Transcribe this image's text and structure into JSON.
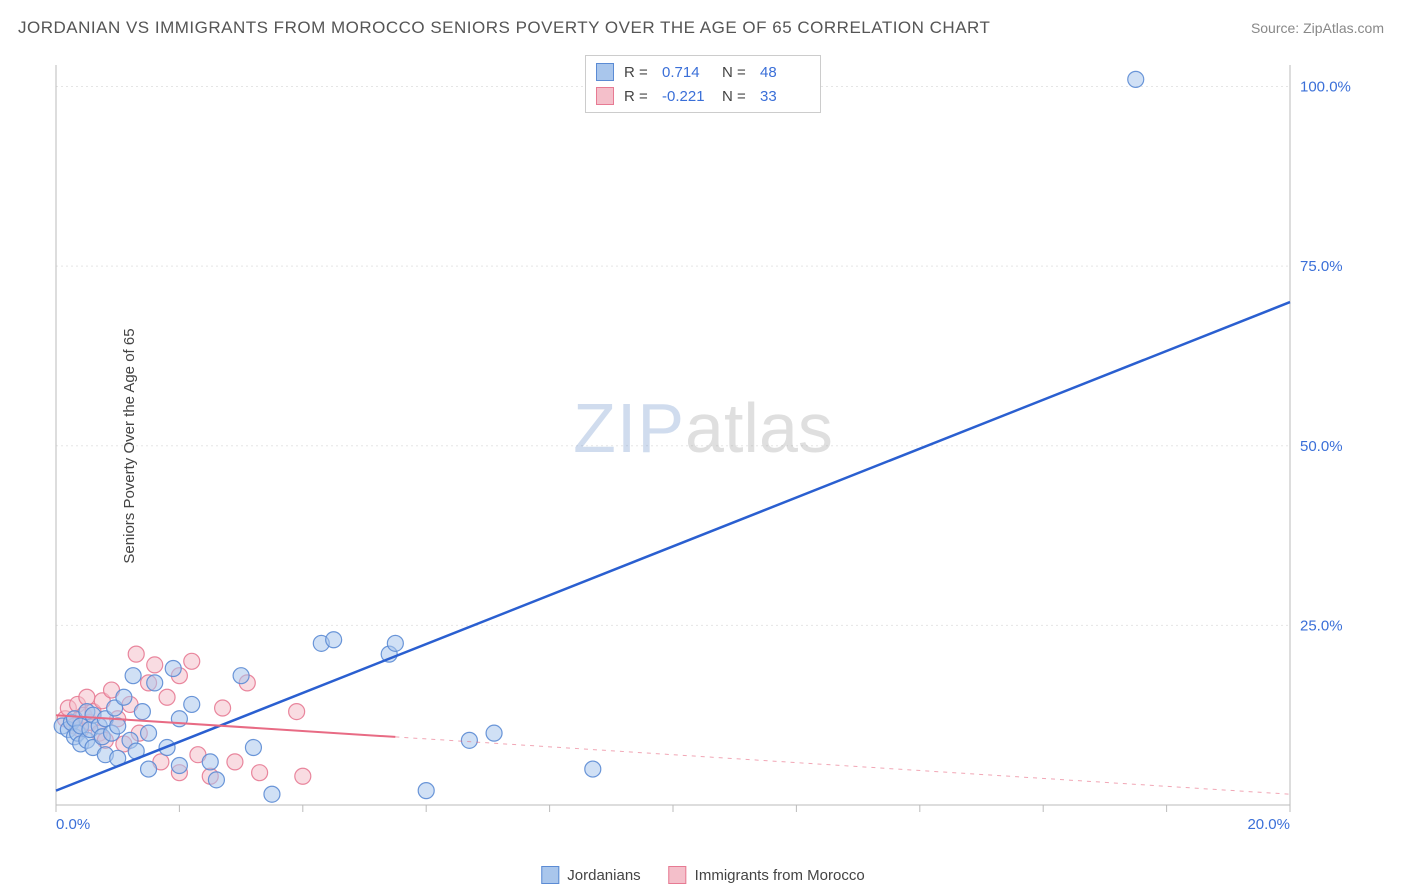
{
  "title": "JORDANIAN VS IMMIGRANTS FROM MOROCCO SENIORS POVERTY OVER THE AGE OF 65 CORRELATION CHART",
  "source_label": "Source:",
  "source_value": "ZipAtlas.com",
  "y_axis_label": "Seniors Poverty Over the Age of 65",
  "watermark": {
    "left": "ZIP",
    "right": "atlas"
  },
  "chart": {
    "type": "scatter-with-regression",
    "background_color": "#ffffff",
    "grid_color": "#e5e5e5",
    "grid_dash": "2,3",
    "axis_color": "#cccccc",
    "xlim": [
      0,
      20
    ],
    "ylim": [
      0,
      103
    ],
    "x_ticks": [
      0,
      2,
      4,
      6,
      8,
      10,
      12,
      14,
      16,
      18,
      20
    ],
    "x_tick_labels": [
      "0.0%",
      "",
      "",
      "",
      "",
      "",
      "",
      "",
      "",
      "",
      "20.0%"
    ],
    "x_tick_label_color": "#3a6fd8",
    "y_ticks": [
      25,
      50,
      75,
      100
    ],
    "y_tick_labels": [
      "25.0%",
      "50.0%",
      "75.0%",
      "100.0%"
    ],
    "y_tick_label_color": "#3a6fd8",
    "y_tick_label_fontsize": 15,
    "marker_radius": 8,
    "marker_opacity": 0.55,
    "marker_stroke_opacity": 0.9,
    "series": [
      {
        "name": "Jordanians",
        "color_fill": "#a9c6ec",
        "color_stroke": "#5b8bd4",
        "R": "0.714",
        "N": "48",
        "regression": {
          "x1": 0,
          "y1": 2,
          "x2": 20,
          "y2": 70,
          "solid_until_x": 20,
          "stroke": "#2a5fd0",
          "width": 2.5
        },
        "points": [
          [
            0.1,
            11
          ],
          [
            0.2,
            10.5
          ],
          [
            0.25,
            11.5
          ],
          [
            0.3,
            12
          ],
          [
            0.3,
            9.5
          ],
          [
            0.35,
            10
          ],
          [
            0.4,
            11
          ],
          [
            0.4,
            8.5
          ],
          [
            0.5,
            13
          ],
          [
            0.5,
            9
          ],
          [
            0.55,
            10.5
          ],
          [
            0.6,
            12.5
          ],
          [
            0.6,
            8
          ],
          [
            0.7,
            11
          ],
          [
            0.75,
            9.5
          ],
          [
            0.8,
            12
          ],
          [
            0.8,
            7
          ],
          [
            0.9,
            10
          ],
          [
            0.95,
            13.5
          ],
          [
            1.0,
            11
          ],
          [
            1.0,
            6.5
          ],
          [
            1.1,
            15
          ],
          [
            1.2,
            9
          ],
          [
            1.25,
            18
          ],
          [
            1.3,
            7.5
          ],
          [
            1.4,
            13
          ],
          [
            1.5,
            10
          ],
          [
            1.5,
            5
          ],
          [
            1.6,
            17
          ],
          [
            1.8,
            8
          ],
          [
            1.9,
            19
          ],
          [
            2.0,
            12
          ],
          [
            2.0,
            5.5
          ],
          [
            2.2,
            14
          ],
          [
            2.5,
            6
          ],
          [
            2.6,
            3.5
          ],
          [
            3.0,
            18
          ],
          [
            3.2,
            8
          ],
          [
            3.5,
            1.5
          ],
          [
            4.3,
            22.5
          ],
          [
            4.5,
            23
          ],
          [
            5.4,
            21
          ],
          [
            5.5,
            22.5
          ],
          [
            6.0,
            2
          ],
          [
            6.7,
            9
          ],
          [
            7.1,
            10
          ],
          [
            8.7,
            5
          ],
          [
            17.5,
            101
          ]
        ]
      },
      {
        "name": "Immigrants from Morocco",
        "color_fill": "#f4bfca",
        "color_stroke": "#e77a93",
        "R": "-0.221",
        "N": "33",
        "regression": {
          "x1": 0,
          "y1": 12.5,
          "x2": 20,
          "y2": 1.5,
          "solid_until_x": 5.5,
          "stroke": "#e86b84",
          "width": 2
        },
        "points": [
          [
            0.15,
            12
          ],
          [
            0.2,
            13.5
          ],
          [
            0.3,
            11
          ],
          [
            0.35,
            14
          ],
          [
            0.4,
            10.5
          ],
          [
            0.45,
            12.5
          ],
          [
            0.5,
            15
          ],
          [
            0.55,
            11.5
          ],
          [
            0.6,
            13
          ],
          [
            0.7,
            10
          ],
          [
            0.75,
            14.5
          ],
          [
            0.8,
            9
          ],
          [
            0.9,
            16
          ],
          [
            1.0,
            12
          ],
          [
            1.1,
            8.5
          ],
          [
            1.2,
            14
          ],
          [
            1.3,
            21
          ],
          [
            1.35,
            10
          ],
          [
            1.5,
            17
          ],
          [
            1.6,
            19.5
          ],
          [
            1.7,
            6
          ],
          [
            1.8,
            15
          ],
          [
            2.0,
            18
          ],
          [
            2.0,
            4.5
          ],
          [
            2.2,
            20
          ],
          [
            2.3,
            7
          ],
          [
            2.5,
            4
          ],
          [
            2.7,
            13.5
          ],
          [
            2.9,
            6
          ],
          [
            3.1,
            17
          ],
          [
            3.3,
            4.5
          ],
          [
            3.9,
            13
          ],
          [
            4.0,
            4
          ]
        ]
      }
    ]
  },
  "legend_top": {
    "r_label": "R  =",
    "n_label": "N  ="
  },
  "legend_bottom": [
    {
      "swatch_fill": "#a9c6ec",
      "swatch_stroke": "#5b8bd4",
      "label": "Jordanians"
    },
    {
      "swatch_fill": "#f4bfca",
      "swatch_stroke": "#e77a93",
      "label": "Immigrants from Morocco"
    }
  ]
}
